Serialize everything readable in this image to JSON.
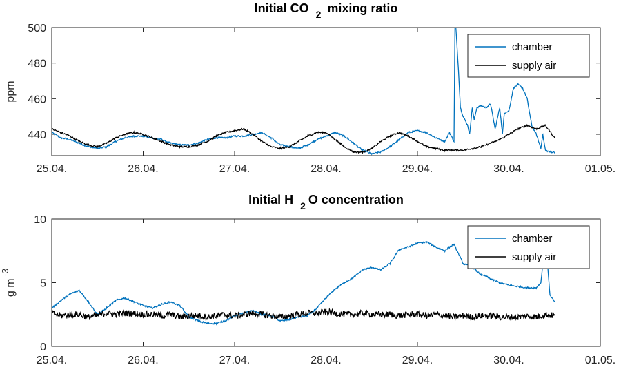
{
  "chart_data": [
    {
      "type": "line",
      "title_main": "Initial CO",
      "title_sub": "2",
      "title_rest": " mixing ratio",
      "ylabel": "ppm",
      "xlim": [
        "25.04.",
        "01.05."
      ],
      "ylim": [
        428,
        500
      ],
      "x_ticks": [
        "25.04.",
        "26.04.",
        "27.04.",
        "28.04.",
        "29.04.",
        "30.04.",
        "01.05."
      ],
      "y_ticks": [
        440,
        460,
        480,
        500
      ],
      "legend_position": "top-right",
      "x_unit": "days after 25.04.",
      "series": [
        {
          "name": "chamber",
          "color": "#0072BD",
          "x": [
            0,
            0.1,
            0.2,
            0.3,
            0.4,
            0.5,
            0.6,
            0.7,
            0.8,
            0.9,
            1.0,
            1.1,
            1.2,
            1.3,
            1.4,
            1.5,
            1.6,
            1.7,
            1.8,
            1.9,
            2.0,
            2.1,
            2.2,
            2.3,
            2.4,
            2.5,
            2.6,
            2.7,
            2.8,
            2.9,
            3.0,
            3.1,
            3.2,
            3.3,
            3.4,
            3.5,
            3.6,
            3.7,
            3.8,
            3.9,
            4.0,
            4.1,
            4.2,
            4.3,
            4.35,
            4.4,
            4.41,
            4.42,
            4.45,
            4.47,
            4.5,
            4.55,
            4.57,
            4.6,
            4.62,
            4.65,
            4.7,
            4.75,
            4.8,
            4.85,
            4.9,
            4.93,
            4.95,
            5.0,
            5.05,
            5.1,
            5.15,
            5.2,
            5.25,
            5.3,
            5.35,
            5.37,
            5.4,
            5.45,
            5.5
          ],
          "values": [
            441,
            438,
            437,
            435,
            433,
            432,
            433,
            436,
            438,
            439,
            439,
            438,
            437,
            435,
            434,
            434,
            435,
            437,
            438,
            438,
            439,
            439,
            440,
            441,
            438,
            434,
            433,
            432,
            434,
            437,
            439,
            441,
            439,
            435,
            431,
            429,
            430,
            433,
            437,
            441,
            442,
            441,
            438,
            436,
            441,
            436,
            500,
            500,
            475,
            455,
            450,
            445,
            440,
            455,
            448,
            455,
            456,
            455,
            457,
            443,
            455,
            440,
            452,
            453,
            466,
            468,
            466,
            460,
            445,
            440,
            432,
            440,
            431,
            430,
            430
          ]
        },
        {
          "name": "supply air",
          "color": "#000000",
          "x": [
            0,
            0.1,
            0.2,
            0.3,
            0.4,
            0.5,
            0.6,
            0.7,
            0.8,
            0.9,
            1.0,
            1.1,
            1.2,
            1.3,
            1.4,
            1.5,
            1.6,
            1.7,
            1.8,
            1.9,
            2.0,
            2.1,
            2.2,
            2.3,
            2.4,
            2.5,
            2.6,
            2.7,
            2.8,
            2.9,
            3.0,
            3.1,
            3.2,
            3.3,
            3.4,
            3.5,
            3.6,
            3.7,
            3.8,
            3.9,
            4.0,
            4.1,
            4.2,
            4.3,
            4.4,
            4.5,
            4.6,
            4.7,
            4.8,
            4.9,
            5.0,
            5.1,
            5.2,
            5.3,
            5.4,
            5.5
          ],
          "values": [
            443,
            441,
            439,
            436,
            434,
            433,
            435,
            438,
            440,
            441,
            440,
            438,
            436,
            434,
            433,
            433,
            434,
            436,
            439,
            441,
            442,
            443,
            440,
            436,
            433,
            432,
            433,
            436,
            439,
            441,
            441,
            437,
            433,
            430,
            430,
            432,
            436,
            439,
            441,
            439,
            436,
            433,
            432,
            431,
            431,
            431,
            432,
            433,
            435,
            437,
            440,
            443,
            445,
            443,
            445,
            438
          ]
        }
      ]
    },
    {
      "type": "line",
      "title_main": "Initial H",
      "title_sub": "2",
      "title_rest": "O concentration",
      "ylabel": "g m",
      "ylabel_sup": "-3",
      "xlim": [
        "25.04.",
        "01.05."
      ],
      "ylim": [
        0,
        10
      ],
      "x_ticks": [
        "25.04.",
        "26.04.",
        "27.04.",
        "28.04.",
        "29.04.",
        "30.04.",
        "01.05."
      ],
      "y_ticks": [
        0,
        5,
        10
      ],
      "legend_position": "top-right",
      "x_unit": "days after 25.04.",
      "series": [
        {
          "name": "chamber",
          "color": "#0072BD",
          "x": [
            0,
            0.1,
            0.2,
            0.3,
            0.4,
            0.5,
            0.6,
            0.7,
            0.8,
            0.9,
            1.0,
            1.1,
            1.2,
            1.3,
            1.4,
            1.5,
            1.6,
            1.7,
            1.8,
            1.9,
            2.0,
            2.1,
            2.2,
            2.3,
            2.4,
            2.5,
            2.6,
            2.7,
            2.8,
            2.9,
            3.0,
            3.1,
            3.2,
            3.3,
            3.4,
            3.5,
            3.6,
            3.7,
            3.8,
            3.9,
            4.0,
            4.1,
            4.2,
            4.3,
            4.35,
            4.4,
            4.5,
            4.6,
            4.7,
            4.75,
            4.8,
            4.9,
            5.0,
            5.1,
            5.2,
            5.3,
            5.35,
            5.4,
            5.45,
            5.5
          ],
          "values": [
            3.0,
            3.6,
            4.1,
            4.4,
            3.5,
            2.5,
            3.0,
            3.6,
            3.8,
            3.5,
            3.2,
            3.0,
            3.3,
            3.5,
            3.2,
            2.3,
            2.0,
            1.8,
            1.8,
            2.0,
            2.4,
            2.6,
            2.8,
            2.5,
            2.4,
            2.0,
            2.1,
            2.3,
            2.4,
            3.0,
            3.8,
            4.5,
            5.0,
            5.4,
            6.0,
            6.2,
            6.0,
            6.5,
            7.6,
            7.8,
            8.1,
            8.2,
            7.8,
            7.5,
            7.8,
            8.0,
            6.5,
            6.2,
            5.6,
            5.5,
            5.3,
            5.0,
            4.8,
            4.7,
            4.6,
            4.6,
            5.0,
            8.5,
            4.0,
            3.5
          ]
        },
        {
          "name": "supply air",
          "color": "#000000",
          "x": [
            0,
            0.1,
            0.2,
            0.3,
            0.4,
            0.5,
            0.6,
            0.7,
            0.8,
            0.9,
            1.0,
            1.1,
            1.2,
            1.3,
            1.4,
            1.5,
            1.6,
            1.7,
            1.8,
            1.9,
            2.0,
            2.1,
            2.2,
            2.3,
            2.4,
            2.5,
            2.6,
            2.7,
            2.8,
            2.9,
            3.0,
            3.1,
            3.2,
            3.3,
            3.4,
            3.5,
            3.6,
            3.7,
            3.8,
            3.9,
            4.0,
            4.1,
            4.2,
            4.3,
            4.4,
            4.5,
            4.6,
            4.7,
            4.8,
            4.9,
            5.0,
            5.1,
            5.2,
            5.3,
            5.4,
            5.5
          ],
          "values": [
            2.6,
            2.4,
            2.5,
            2.5,
            2.3,
            2.4,
            2.6,
            2.5,
            2.6,
            2.6,
            2.5,
            2.5,
            2.4,
            2.5,
            2.3,
            2.4,
            2.4,
            2.3,
            2.4,
            2.5,
            2.4,
            2.5,
            2.6,
            2.5,
            2.4,
            2.3,
            2.4,
            2.5,
            2.6,
            2.6,
            2.7,
            2.6,
            2.5,
            2.5,
            2.6,
            2.5,
            2.5,
            2.5,
            2.4,
            2.5,
            2.5,
            2.4,
            2.5,
            2.4,
            2.3,
            2.4,
            2.3,
            2.4,
            2.4,
            2.3,
            2.3,
            2.3,
            2.4,
            2.3,
            2.5,
            2.4
          ],
          "noise_amplitude": 0.25
        }
      ]
    }
  ]
}
